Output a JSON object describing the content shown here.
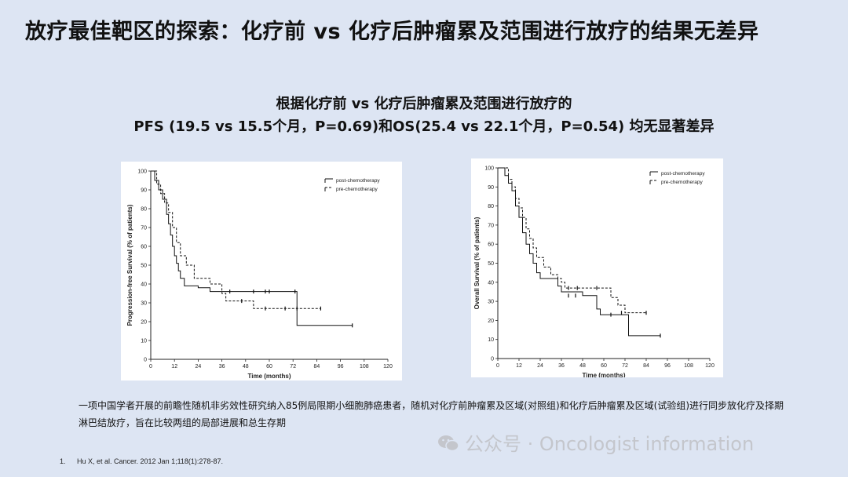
{
  "title": "放疗最佳靶区的探索：化疗前 vs 化疗后肿瘤累及范围进行放疗的结果无差异",
  "subtitle_line1": "根据化疗前 vs 化疗后肿瘤累及范围进行放疗的",
  "subtitle_line2": "PFS (19.5 vs 15.5个月，P=0.69)和OS(25.4 vs 22.1个月，P=0.54) 均无显著差异",
  "chart_data": [
    {
      "type": "line",
      "style": "kaplan-meier step",
      "xlabel": "Time (months)",
      "ylabel": "Progression-free Survival (% of patients)",
      "xlim": [
        0,
        120
      ],
      "ylim": [
        0,
        100
      ],
      "xticks": [
        0,
        12,
        24,
        36,
        48,
        60,
        72,
        84,
        96,
        108,
        120
      ],
      "yticks": [
        0,
        10,
        20,
        30,
        40,
        50,
        60,
        70,
        80,
        90,
        100
      ],
      "legend_position": "top-right",
      "series": [
        {
          "name": "post-chemotherapy",
          "line": "solid",
          "x": [
            0,
            2,
            4,
            6,
            8,
            9,
            10,
            11,
            12,
            13,
            14,
            15,
            17,
            24,
            30,
            36,
            74,
            102
          ],
          "y": [
            100,
            95,
            90,
            85,
            77,
            72,
            66,
            60,
            55,
            51,
            47,
            43,
            39,
            38,
            36,
            36,
            18,
            18
          ],
          "censored": [
            [
              40,
              36
            ],
            [
              52,
              36
            ],
            [
              58,
              36
            ],
            [
              60,
              36
            ],
            [
              73,
              36
            ],
            [
              102,
              18
            ]
          ]
        },
        {
          "name": "pre-chemotherapy",
          "line": "dashed",
          "x": [
            0,
            3,
            5,
            7,
            9,
            11,
            13,
            15,
            18,
            22,
            30,
            36,
            38,
            52,
            86
          ],
          "y": [
            100,
            93,
            88,
            83,
            78,
            70,
            62,
            55,
            50,
            43,
            40,
            35,
            31,
            27,
            27
          ],
          "censored": [
            [
              46,
              31
            ],
            [
              58,
              27
            ],
            [
              68,
              27
            ],
            [
              74,
              27
            ],
            [
              86,
              27
            ]
          ]
        }
      ]
    },
    {
      "type": "line",
      "style": "kaplan-meier step",
      "xlabel": "Time (months)",
      "ylabel": "Overall Survival (% of patients)",
      "xlim": [
        0,
        120
      ],
      "ylim": [
        0,
        100
      ],
      "xticks": [
        0,
        12,
        24,
        36,
        48,
        60,
        72,
        84,
        96,
        108,
        120
      ],
      "yticks": [
        0,
        10,
        20,
        30,
        40,
        50,
        60,
        70,
        80,
        90,
        100
      ],
      "legend_position": "top-right",
      "series": [
        {
          "name": "post-chemotherapy",
          "line": "solid",
          "x": [
            0,
            4,
            6,
            8,
            10,
            12,
            14,
            16,
            18,
            20,
            22,
            24,
            30,
            34,
            36,
            48,
            56,
            58,
            74,
            92
          ],
          "y": [
            100,
            96,
            92,
            88,
            80,
            74,
            66,
            60,
            55,
            50,
            45,
            42,
            42,
            38,
            35,
            33,
            26,
            23,
            12,
            12
          ],
          "censored": [
            [
              40,
              33
            ],
            [
              44,
              33
            ],
            [
              64,
              23
            ],
            [
              92,
              12
            ]
          ]
        },
        {
          "name": "pre-chemotherapy",
          "line": "dashed",
          "x": [
            0,
            6,
            8,
            10,
            12,
            14,
            16,
            18,
            20,
            22,
            26,
            30,
            34,
            36,
            38,
            52,
            62,
            64,
            68,
            72,
            84
          ],
          "y": [
            100,
            94,
            90,
            84,
            79,
            74,
            68,
            63,
            58,
            53,
            48,
            44,
            42,
            40,
            37,
            37,
            37,
            32,
            28,
            24,
            24
          ],
          "censored": [
            [
              40,
              37
            ],
            [
              45,
              37
            ],
            [
              56,
              37
            ],
            [
              70,
              24
            ],
            [
              84,
              24
            ]
          ]
        }
      ]
    }
  ],
  "description": "一项中国学者开展的前瞻性随机非劣效性研究纳入85例局限期小细胞肺癌患者，随机对化疗前肿瘤累及区域(对照组)和化疗后肿瘤累及区域(试验组)进行同步放化疗及择期淋巴结放疗，旨在比较两组的局部进展和总生存期",
  "watermark": "公众号 · Oncologist information",
  "reference": {
    "number": "1.",
    "text": "Hu X, et al. Cancer. 2012 Jan 1;118(1):278-87."
  }
}
